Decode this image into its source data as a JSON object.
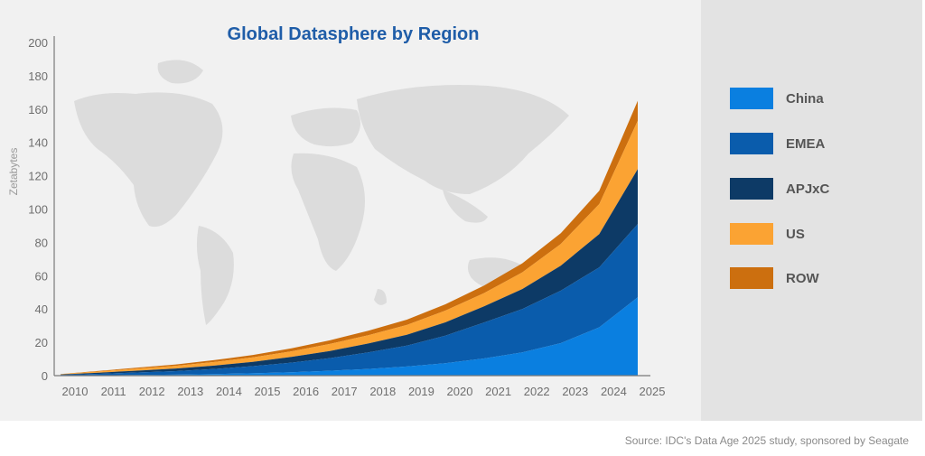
{
  "source_note": "Source: IDC's Data Age 2025 study, sponsored by Seagate",
  "chart_data": {
    "type": "area",
    "stacked": true,
    "title": "Global Datasphere by Region",
    "xlabel": "",
    "ylabel": "Zetabytes",
    "ylim": [
      0,
      200
    ],
    "yticks": [
      0,
      20,
      40,
      60,
      80,
      100,
      120,
      140,
      160,
      180,
      200
    ],
    "x": [
      "2010",
      "2011",
      "2012",
      "2013",
      "2014",
      "2015",
      "2016",
      "2017",
      "2018",
      "2019",
      "2020",
      "2021",
      "2022",
      "2023",
      "2024",
      "2025"
    ],
    "grid": false,
    "legend_position": "right",
    "series": [
      {
        "name": "China",
        "color": "#0a7fe0",
        "values": [
          0.1,
          0.2,
          0.4,
          0.6,
          1.0,
          1.4,
          2.0,
          2.9,
          4.0,
          5.5,
          7.5,
          10.3,
          14.0,
          19.5,
          29.0,
          47.0
        ]
      },
      {
        "name": "EMEA",
        "color": "#0a5cac",
        "values": [
          0.3,
          0.9,
          1.5,
          2.1,
          3.0,
          4.3,
          5.8,
          7.6,
          10.0,
          12.5,
          16.5,
          21.5,
          26.0,
          31.5,
          36.0,
          44.0
        ]
      },
      {
        "name": "APJxC",
        "color": "#0d3a66",
        "values": [
          0.3,
          0.7,
          1.1,
          1.6,
          2.0,
          2.6,
          3.4,
          4.3,
          5.3,
          6.5,
          8.0,
          9.7,
          12.0,
          15.0,
          20.0,
          33.0
        ]
      },
      {
        "name": "US",
        "color": "#fba333",
        "values": [
          0.2,
          0.7,
          1.2,
          1.6,
          2.2,
          2.7,
          3.4,
          4.2,
          5.0,
          5.9,
          7.0,
          8.0,
          10.0,
          13.0,
          18.0,
          29.0
        ]
      },
      {
        "name": "ROW",
        "color": "#cc6f0f",
        "values": [
          0.1,
          0.3,
          0.6,
          0.8,
          1.1,
          1.4,
          1.8,
          2.2,
          2.7,
          3.2,
          3.8,
          4.5,
          5.4,
          6.5,
          8.0,
          12.0
        ]
      }
    ]
  }
}
